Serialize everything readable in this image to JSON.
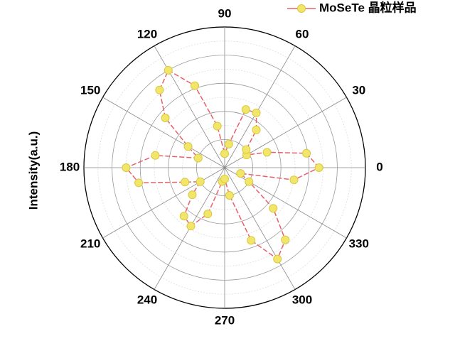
{
  "chart_data": {
    "type": "polar",
    "y_label": "Intensity(a.u.)",
    "theta": [
      0,
      10,
      20,
      30,
      40,
      50,
      60,
      70,
      80,
      90,
      100,
      110,
      120,
      130,
      140,
      150,
      160,
      170,
      180,
      190,
      200,
      210,
      220,
      230,
      240,
      250,
      260,
      270,
      280,
      290,
      300,
      310,
      320,
      330,
      340,
      350
    ],
    "series": [
      {
        "name": "MoSeTe 晶粒样品",
        "color": "#e8606a",
        "marker_color": "#f2e66a",
        "values": [
          0.67,
          0.59,
          0.32,
          0.18,
          0.2,
          0.35,
          0.45,
          0.44,
          0.17,
          0.1,
          0.3,
          0.62,
          0.8,
          0.72,
          0.55,
          0.3,
          0.2,
          0.5,
          0.7,
          0.62,
          0.3,
          0.2,
          0.3,
          0.45,
          0.48,
          0.35,
          0.1,
          0.08,
          0.2,
          0.55,
          0.75,
          0.67,
          0.45,
          0.2,
          0.12,
          0.5
        ]
      }
    ],
    "rlim": [
      0,
      1
    ],
    "thetaticks": [
      0,
      30,
      60,
      90,
      120,
      150,
      180,
      210,
      240,
      270,
      300,
      330
    ],
    "grid": true
  }
}
